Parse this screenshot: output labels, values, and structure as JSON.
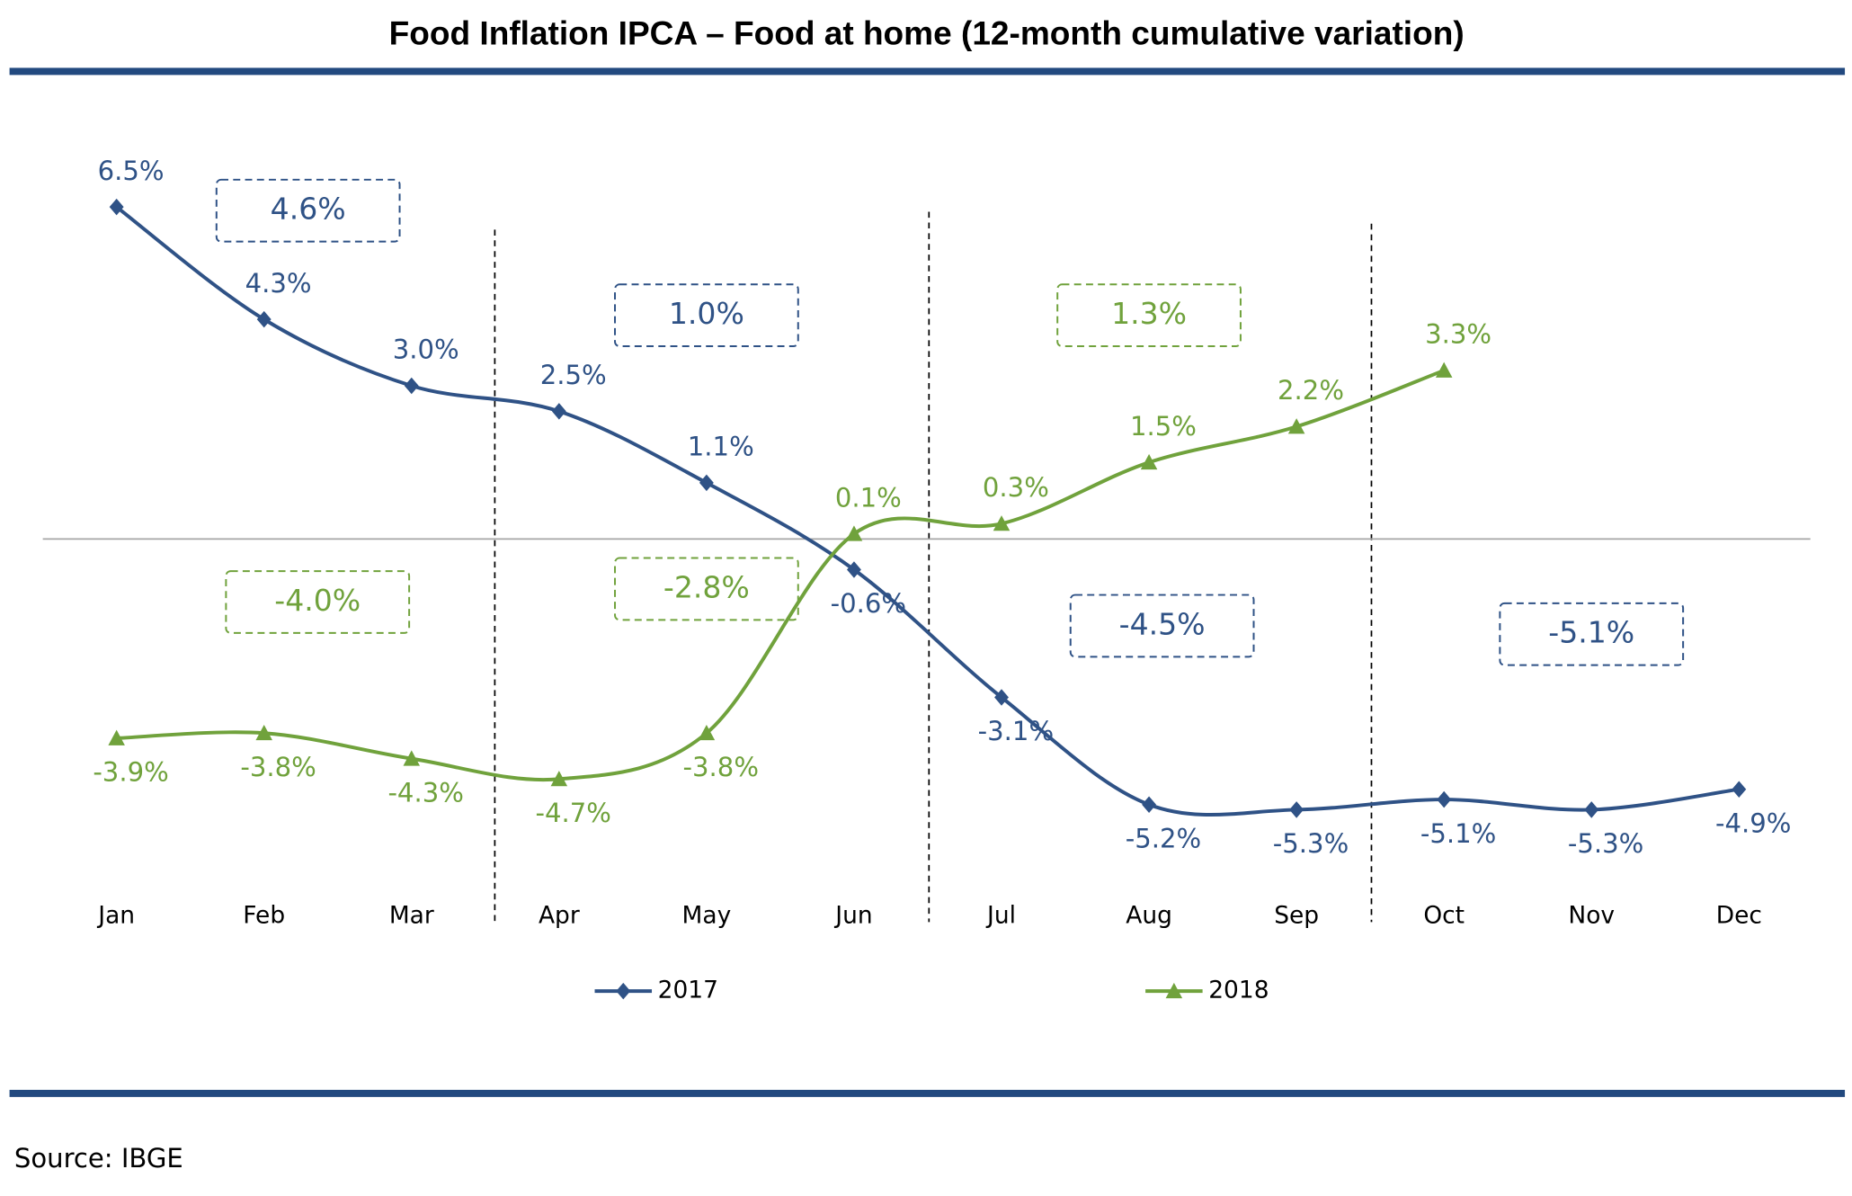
{
  "chart_data": {
    "type": "line",
    "title": "Food Inflation IPCA – Food at home (12-month cumulative variation)",
    "source": "Source: IBGE",
    "categories": [
      "Jan",
      "Feb",
      "Mar",
      "Apr",
      "May",
      "Jun",
      "Jul",
      "Aug",
      "Sep",
      "Oct",
      "Nov",
      "Dec"
    ],
    "ylim": [
      -7.5,
      7.5
    ],
    "legend": "bottom",
    "series": [
      {
        "name": "2017",
        "color": "#2f5286",
        "marker": "diamond",
        "values": [
          6.5,
          4.3,
          3.0,
          2.5,
          1.1,
          -0.6,
          -3.1,
          -5.2,
          -5.3,
          -5.1,
          -5.3,
          -4.9
        ],
        "value_labels": [
          "6.5%",
          "4.3%",
          "3.0%",
          "2.5%",
          "1.1%",
          "-0.6%",
          "-3.1%",
          "-5.2%",
          "-5.3%",
          "-5.1%",
          "-5.3%",
          "-4.9%"
        ],
        "quarter_values": [
          4.6,
          1.0,
          -4.5,
          -5.1
        ],
        "quarter_labels": [
          "4.6%",
          "1.0%",
          "-4.5%",
          "-5.1%"
        ]
      },
      {
        "name": "2018",
        "color": "#70a23c",
        "marker": "triangle",
        "values": [
          -3.9,
          -3.8,
          -4.3,
          -4.7,
          -3.8,
          0.1,
          0.3,
          1.5,
          2.2,
          3.3,
          null,
          null
        ],
        "value_labels": [
          "-3.9%",
          "-3.8%",
          "-4.3%",
          "-4.7%",
          "-3.8%",
          "0.1%",
          "0.3%",
          "1.5%",
          "2.2%",
          "3.3%",
          null,
          null
        ],
        "quarter_values": [
          -4.0,
          -2.8,
          1.3
        ],
        "quarter_labels": [
          "-4.0%",
          "-2.8%",
          "1.3%"
        ]
      }
    ]
  }
}
